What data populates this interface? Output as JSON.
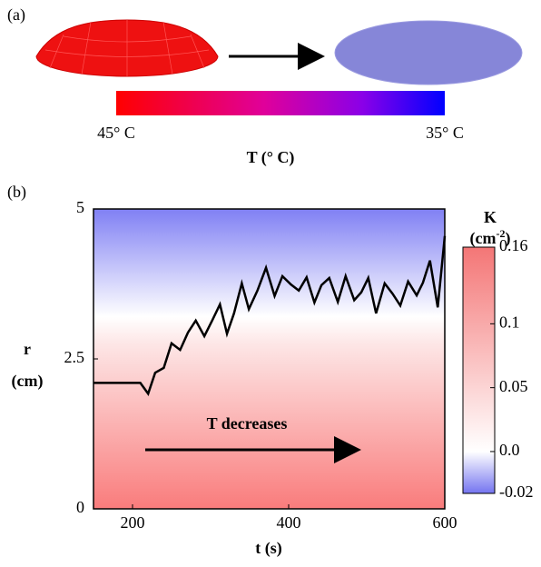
{
  "panel_a": {
    "label": "(a)",
    "colorbar_left": "45° C",
    "colorbar_right": "35° C",
    "colorbar_title": "T (° C)"
  },
  "chart_data": {
    "type": "line",
    "panel_label": "(b)",
    "x_label": "t (s)",
    "y_label_top": "r",
    "y_label_bottom": "(cm)",
    "annotation": "T decreases",
    "x": [
      150,
      210,
      220,
      229,
      240,
      250,
      261,
      271,
      281,
      292,
      302,
      312,
      321,
      330,
      340,
      349,
      360,
      371,
      382,
      392,
      403,
      413,
      423,
      433,
      442,
      452,
      463,
      473,
      484,
      493,
      502,
      512,
      523,
      533,
      543,
      553,
      564,
      572,
      581,
      591,
      600
    ],
    "values": [
      2.1,
      2.1,
      1.92,
      2.27,
      2.35,
      2.76,
      2.65,
      2.94,
      3.14,
      2.88,
      3.14,
      3.41,
      2.92,
      3.26,
      3.76,
      3.33,
      3.64,
      4.02,
      3.55,
      3.88,
      3.74,
      3.64,
      3.86,
      3.44,
      3.73,
      3.85,
      3.45,
      3.88,
      3.48,
      3.61,
      3.85,
      3.26,
      3.76,
      3.59,
      3.39,
      3.79,
      3.56,
      3.77,
      4.14,
      3.36,
      4.55
    ],
    "color": "#000000",
    "xlim": [
      150,
      600
    ],
    "xticks": [
      200,
      400,
      600
    ],
    "ylim": [
      0,
      5
    ],
    "yticks": [
      0,
      2.5,
      5
    ],
    "colorbar": {
      "label": "K",
      "unit_parts": [
        "(cm",
        "-2",
        ")"
      ],
      "lim": [
        -0.02,
        0.16
      ],
      "ticks": [
        0.16,
        0.1,
        0.05,
        {
          "value": 0,
          "label": "0.0"
        },
        -0.02
      ]
    }
  }
}
